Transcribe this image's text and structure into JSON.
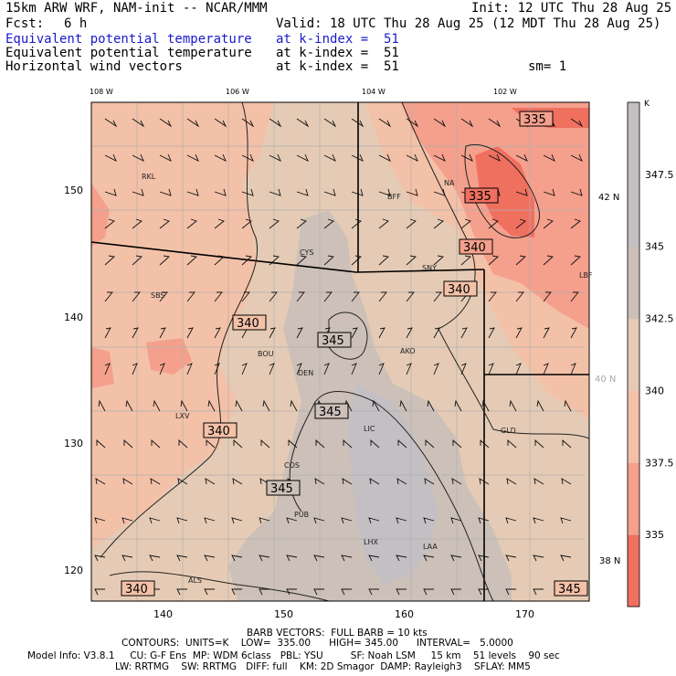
{
  "header": {
    "model_line": "15km ARW WRF, NAM-init -- NCAR/MMM",
    "init": "Init: 12 UTC Thu 28 Aug 25",
    "fcst_label": "Fcst:",
    "fcst_value": "6 h",
    "valid": "Valid: 18 UTC Thu 28 Aug 25 (12 MDT Thu 28 Aug 25)",
    "fields": [
      {
        "name": "Equivalent potential temperature",
        "level": "at k-index =  51"
      },
      {
        "name": "Equivalent potential temperature",
        "level": "at k-index =  51"
      },
      {
        "name": "Horizontal wind vectors",
        "level": "at k-index =  51"
      }
    ],
    "smoothing": "sm= 1"
  },
  "colors": {
    "c335": "#f07060",
    "c3375": "#f4a08c",
    "c340": "#f3c1a8",
    "c3425": "#e5cbb5",
    "c345": "#cdc0b8",
    "c3475": "#c3bfc3",
    "bound": "#b0b0b0"
  },
  "chart_data": {
    "type": "heatmap",
    "variable": "Equivalent potential temperature",
    "unit": "K",
    "colorbar_ticks": [
      "347.5",
      "345",
      "342.5",
      "340",
      "337.5",
      "335"
    ],
    "colorbar_levels": [
      335,
      337.5,
      340,
      342.5,
      345,
      347.5
    ],
    "x_grid_ticks": [
      "140",
      "150",
      "160",
      "170"
    ],
    "y_grid_ticks": [
      "120",
      "130",
      "140",
      "150"
    ],
    "top_lon_labels": [
      "108 W",
      "106 W",
      "104 W",
      "102 W"
    ],
    "right_lat_labels": [
      "42 N",
      "40 N",
      "38 N"
    ],
    "contour_labels": [
      "335",
      "335",
      "340",
      "340",
      "340",
      "345",
      "345",
      "340",
      "345",
      "340",
      "345"
    ],
    "stations": [
      "RKL",
      "BFF",
      "NA",
      "CYS",
      "SNY",
      "LBF",
      "SBS",
      "BOU",
      "DEN",
      "AKO",
      "LXV",
      "LIC",
      "GLD",
      "COS",
      "PUB",
      "LHX",
      "LAA",
      "ALS"
    ],
    "contours": {
      "units": "K",
      "low": 335.0,
      "high": 345.0,
      "interval": 5.0
    }
  },
  "footer": {
    "barb_line": "BARB VECTORS:  FULL BARB = 10 kts",
    "contours_line": "CONTOURS:  UNITS=K    LOW=  335.00      HIGH= 345.00      INTERVAL=   5.0000",
    "model_info": "Model Info: V3.8.1     CU: G-F Ens  MP: WDM 6class   PBL: YSU         SF: Noah LSM     15 km    51 levels    90 sec",
    "model_info2": "LW: RRTMG    SW: RRTMG   DIFF: full    KM: 2D Smagor  DAMP: Rayleigh3    SFLAY: MM5"
  }
}
